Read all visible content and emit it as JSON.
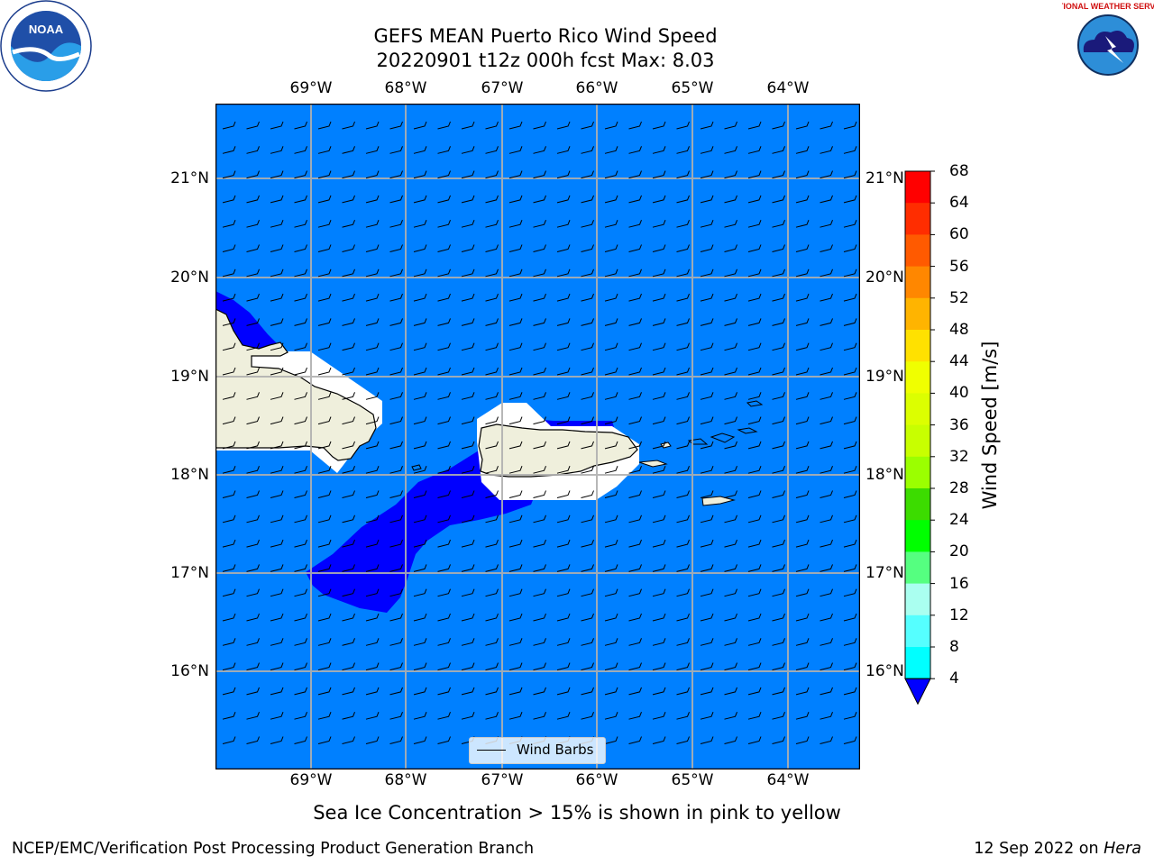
{
  "title": {
    "line1": "GEFS MEAN Puerto Rico Wind Speed",
    "line2": "20220901 t12z 000h fcst   Max: 8.03"
  },
  "map": {
    "lon_labels": [
      "69°W",
      "68°W",
      "67°W",
      "66°W",
      "65°W",
      "64°W"
    ],
    "lat_labels": [
      "21°N",
      "20°N",
      "19°N",
      "18°N",
      "17°N",
      "16°N"
    ],
    "ocean_color": "#0080ff",
    "low_wind_color": "#0000ff",
    "land_color": "#efefdc",
    "wind_barb_direction": "from east-northeast"
  },
  "legend": {
    "label": "Wind Barbs"
  },
  "colorbar": {
    "label": "Wind Speed [m/s]",
    "ticks": [
      "68",
      "64",
      "60",
      "56",
      "52",
      "48",
      "44",
      "40",
      "36",
      "32",
      "28",
      "24",
      "20",
      "16",
      "12",
      "8",
      "4"
    ],
    "colors": [
      "#ff0000",
      "#ff2d00",
      "#ff5a00",
      "#ff8700",
      "#ffb400",
      "#ffe100",
      "#f0ff00",
      "#dcff00",
      "#c8ff00",
      "#9bff00",
      "#3cdc00",
      "#00ff00",
      "#55ff80",
      "#aafff0",
      "#55ffff",
      "#00ffff",
      "#0080ff"
    ],
    "under_color": "#0000ff"
  },
  "caption": "Sea Ice Concentration > 15% is shown in pink to yellow",
  "footer": {
    "left": "NCEP/EMC/Verification Post Processing Product Generation Branch",
    "right_date": "12 Sep 2022 on ",
    "right_machine": "Hera"
  },
  "logos": {
    "left": "NOAA",
    "right": "NATIONAL WEATHER SERVICE"
  }
}
